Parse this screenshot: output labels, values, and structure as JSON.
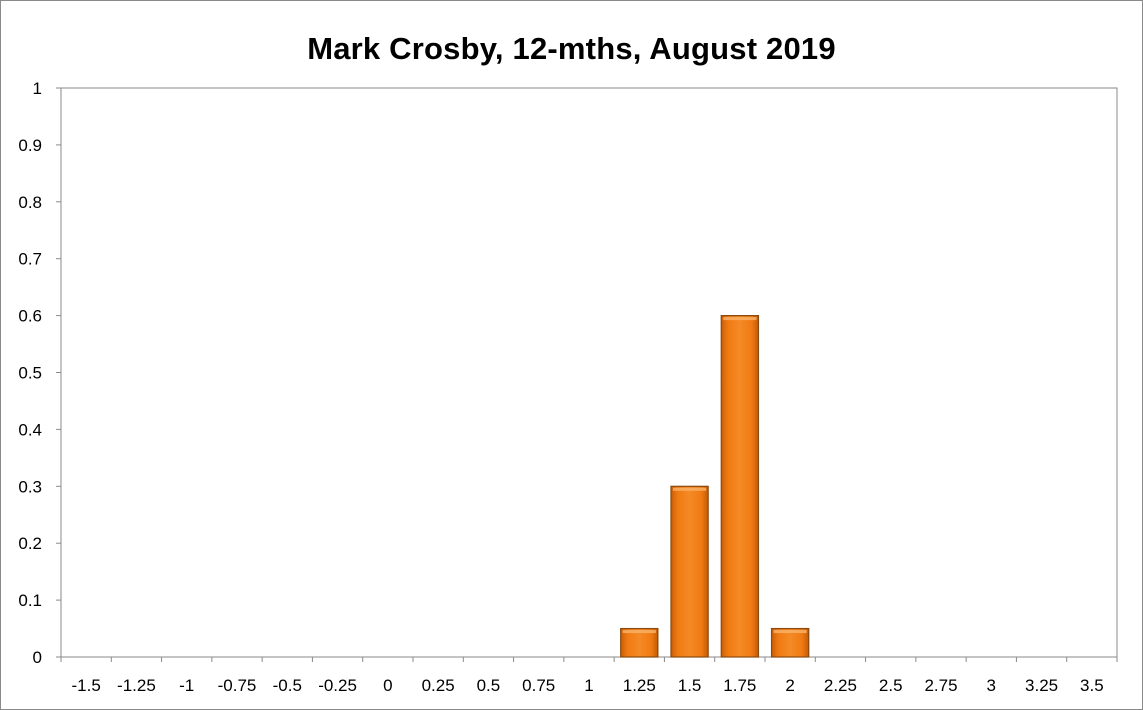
{
  "chart_data": {
    "type": "bar",
    "title": "Mark Crosby, 12-mths, August 2019",
    "xlabel": "",
    "ylabel": "",
    "categories": [
      "-1.5",
      "-1.25",
      "-1",
      "-0.75",
      "-0.5",
      "-0.25",
      "0",
      "0.25",
      "0.5",
      "0.75",
      "1",
      "1.25",
      "1.5",
      "1.75",
      "2",
      "2.25",
      "2.5",
      "2.75",
      "3",
      "3.25",
      "3.5"
    ],
    "values": [
      0,
      0,
      0,
      0,
      0,
      0,
      0,
      0,
      0,
      0,
      0,
      0.05,
      0.3,
      0.6,
      0.05,
      0,
      0,
      0,
      0,
      0,
      0
    ],
    "ylim": [
      0,
      1
    ],
    "yticks": [
      "0",
      "0.1",
      "0.2",
      "0.3",
      "0.4",
      "0.5",
      "0.6",
      "0.7",
      "0.8",
      "0.9",
      "1"
    ],
    "grid": false,
    "legend": "none",
    "bar_color": "#f07a12",
    "bar_edge_color": "#8a4a10"
  }
}
